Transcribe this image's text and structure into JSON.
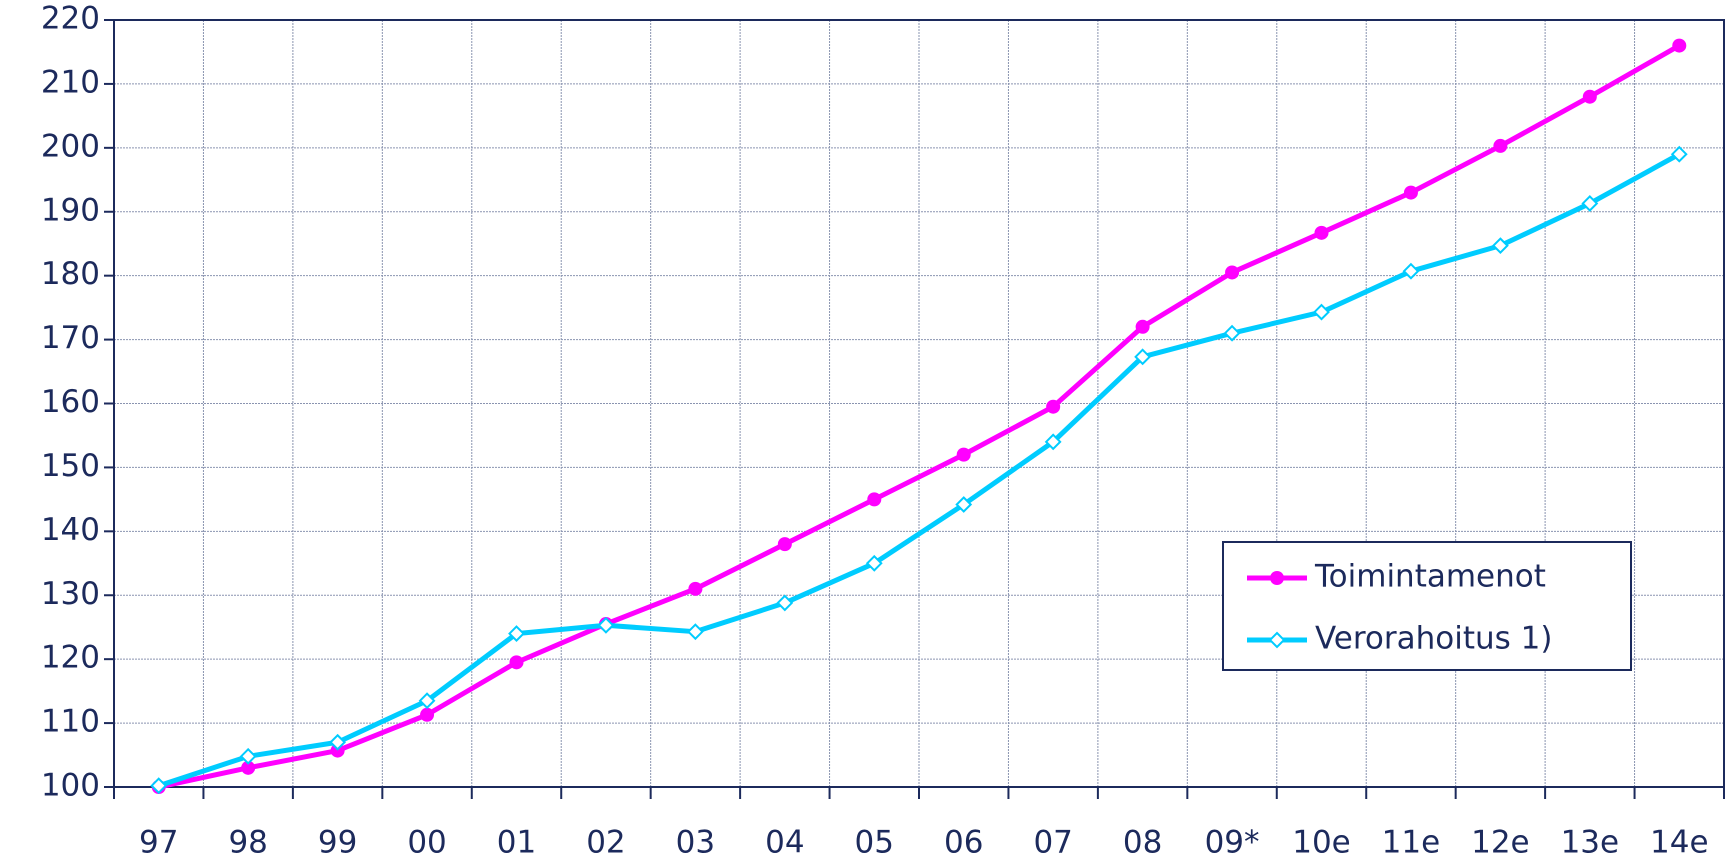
{
  "chart_data": {
    "type": "line",
    "categories": [
      "97",
      "98",
      "99",
      "00",
      "01",
      "02",
      "03",
      "04",
      "05",
      "06",
      "07",
      "08",
      "09*",
      "10e",
      "11e",
      "12e",
      "13e",
      "14e"
    ],
    "series": [
      {
        "name": "Toimintamenot",
        "color": "#ff00ff",
        "marker": "circle",
        "values": [
          100,
          103,
          105.7,
          111.3,
          119.5,
          125.5,
          131,
          138,
          145,
          152,
          159.5,
          172,
          180.5,
          186.7,
          193,
          200.3,
          208,
          216
        ]
      },
      {
        "name": "Verorahoitus 1)",
        "color": "#00ccff",
        "marker": "diamond",
        "values": [
          100.2,
          104.8,
          107,
          113.5,
          124,
          125.3,
          124.3,
          128.8,
          135,
          144.2,
          154,
          167.3,
          171,
          174.3,
          180.7,
          184.7,
          191.3,
          199
        ]
      }
    ],
    "ylim": [
      100,
      220
    ],
    "yticks": [
      100,
      110,
      120,
      130,
      140,
      150,
      160,
      170,
      180,
      190,
      200,
      210,
      220
    ],
    "grid": true,
    "legend": "lower right"
  }
}
